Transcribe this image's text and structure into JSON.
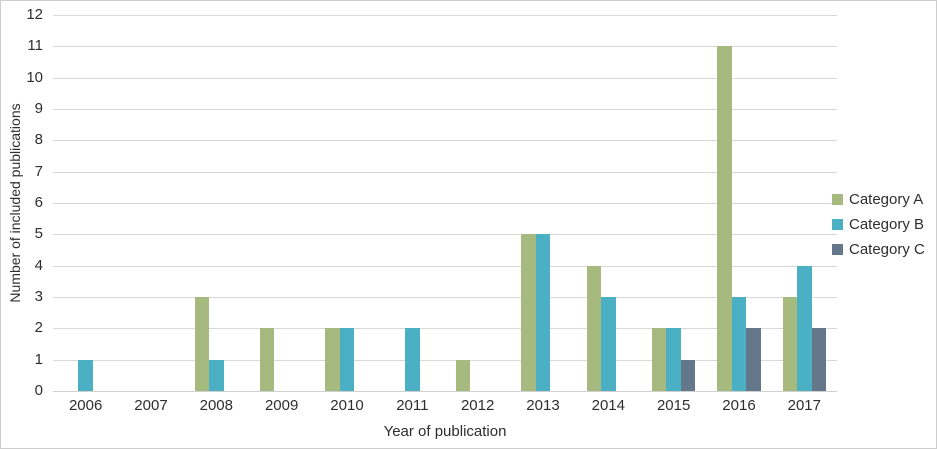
{
  "chart_data": {
    "type": "bar",
    "title": "",
    "xlabel": "Year of publication",
    "ylabel": "Number of included publications",
    "categories": [
      "2006",
      "2007",
      "2008",
      "2009",
      "2010",
      "2011",
      "2012",
      "2013",
      "2014",
      "2015",
      "2016",
      "2017"
    ],
    "series": [
      {
        "name": "Category A",
        "color": "#a6b97e",
        "values": [
          0,
          0,
          3,
          2,
          2,
          0,
          1,
          5,
          4,
          2,
          11,
          3
        ]
      },
      {
        "name": "Category B",
        "color": "#4bb0c4",
        "values": [
          1,
          0,
          1,
          0,
          2,
          2,
          0,
          5,
          3,
          2,
          3,
          4
        ]
      },
      {
        "name": "Category C",
        "color": "#65778b",
        "values": [
          0,
          0,
          0,
          0,
          0,
          0,
          0,
          0,
          0,
          1,
          2,
          2
        ]
      }
    ],
    "ylim": [
      0,
      12
    ],
    "yticks": [
      0,
      1,
      2,
      3,
      4,
      5,
      6,
      7,
      8,
      9,
      10,
      11,
      12
    ],
    "grid": "horizontal",
    "gridline_color": "#d9d9d9",
    "legend_position": "right",
    "axis_text_color": "#2e2e2e"
  }
}
